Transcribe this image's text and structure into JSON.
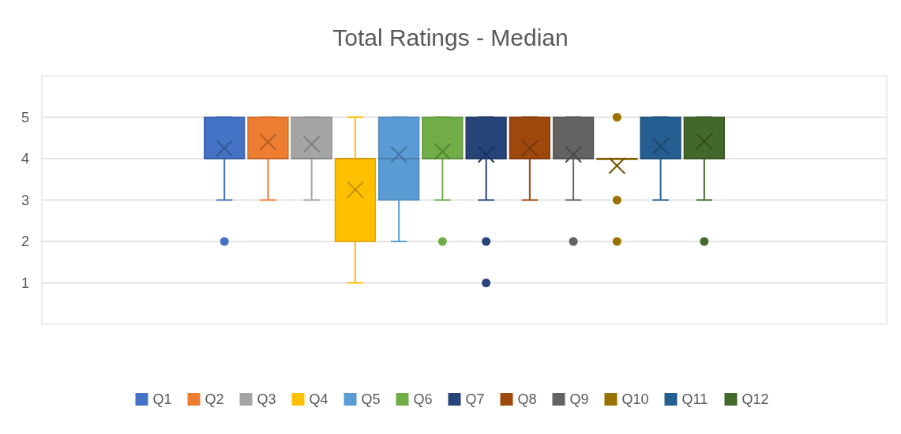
{
  "chart_data": {
    "type": "box",
    "title": "Total Ratings - Median",
    "categories": [
      null
    ],
    "ylim": [
      0,
      6
    ],
    "yticks": [
      1,
      2,
      3,
      4,
      5
    ],
    "grid": "y",
    "legend": "bottom",
    "series": [
      {
        "name": "Q1",
        "color": "#4472c4",
        "boxes": [
          {
            "low": 3,
            "q1": 4,
            "median": 4,
            "q3": 5,
            "high": 5,
            "mean": 4.25,
            "outliers": [
              2
            ]
          }
        ]
      },
      {
        "name": "Q2",
        "color": "#ed7d31",
        "boxes": [
          {
            "low": 3,
            "q1": 4,
            "median": 4,
            "q3": 5,
            "high": 5,
            "mean": 4.4
          }
        ]
      },
      {
        "name": "Q3",
        "color": "#a5a5a5",
        "boxes": [
          {
            "low": 3,
            "q1": 4,
            "median": 4,
            "q3": 5,
            "high": 5,
            "mean": 4.35
          }
        ]
      },
      {
        "name": "Q4",
        "color": "#ffc000",
        "boxes": [
          {
            "low": 1,
            "q1": 2,
            "median": 4,
            "q3": 4,
            "high": 5,
            "mean": 3.25
          }
        ]
      },
      {
        "name": "Q5",
        "color": "#5b9bd5",
        "boxes": [
          {
            "low": 2,
            "q1": 3,
            "median": 4,
            "q3": 5,
            "high": 5,
            "mean": 4.1
          }
        ]
      },
      {
        "name": "Q6",
        "color": "#70ad47",
        "boxes": [
          {
            "low": 3,
            "q1": 4,
            "median": 4,
            "q3": 5,
            "high": 5,
            "mean": 4.17,
            "outliers": [
              2
            ]
          }
        ]
      },
      {
        "name": "Q7",
        "color": "#264478",
        "boxes": [
          {
            "low": 3,
            "q1": 4,
            "median": 4,
            "q3": 5,
            "high": 5,
            "mean": 4.1,
            "outliers": [
              2,
              1
            ]
          }
        ]
      },
      {
        "name": "Q8",
        "color": "#9e480e",
        "boxes": [
          {
            "low": 3,
            "q1": 4,
            "median": 4,
            "q3": 5,
            "high": 5,
            "mean": 4.25
          }
        ]
      },
      {
        "name": "Q9",
        "color": "#636363",
        "boxes": [
          {
            "low": 3,
            "q1": 4,
            "median": 4,
            "q3": 5,
            "high": 5,
            "mean": 4.1,
            "outliers": [
              2
            ]
          }
        ]
      },
      {
        "name": "Q10",
        "color": "#997300",
        "boxes": [
          {
            "low": 4,
            "q1": 4,
            "median": 4,
            "q3": 4,
            "high": 4,
            "mean": 3.83,
            "outliers": [
              5,
              3,
              2
            ]
          }
        ]
      },
      {
        "name": "Q11",
        "color": "#255e91",
        "boxes": [
          {
            "low": 3,
            "q1": 4,
            "median": 4,
            "q3": 5,
            "high": 5,
            "mean": 4.3
          }
        ]
      },
      {
        "name": "Q12",
        "color": "#43682b",
        "boxes": [
          {
            "low": 3,
            "q1": 4,
            "median": 4,
            "q3": 5,
            "high": 5,
            "mean": 4.42,
            "outliers": [
              2
            ]
          }
        ]
      }
    ]
  }
}
